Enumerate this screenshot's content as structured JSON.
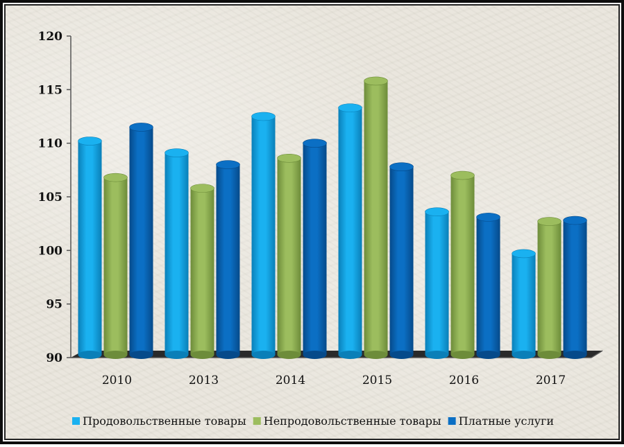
{
  "colors": {
    "series": [
      "#1ab1f0",
      "#9cbd5e",
      "#0b6fc4"
    ],
    "series_dark": [
      "#0a7fb8",
      "#6d8c3a",
      "#064a8a"
    ],
    "axis": "#555555",
    "floor": "#2a2a2a"
  },
  "chart_data": {
    "type": "bar",
    "categories": [
      "2010",
      "2013",
      "2014",
      "2015",
      "2016",
      "2017"
    ],
    "series": [
      {
        "name": "Продовольственные товары",
        "values": [
          110.2,
          109.1,
          112.5,
          113.3,
          103.6,
          99.7
        ]
      },
      {
        "name": "Непродовольственные товары",
        "values": [
          106.8,
          105.8,
          108.6,
          115.8,
          107.0,
          102.7
        ]
      },
      {
        "name": "Платные услуги",
        "values": [
          111.5,
          108.0,
          110.0,
          107.8,
          103.1,
          102.8
        ]
      }
    ],
    "title": "",
    "xlabel": "",
    "ylabel": "",
    "ylim": [
      90,
      120
    ],
    "yticks": [
      "90",
      "95",
      "100",
      "105",
      "110",
      "115",
      "120"
    ],
    "grid": false,
    "legend_position": "bottom",
    "style": "3d-cylinder"
  }
}
